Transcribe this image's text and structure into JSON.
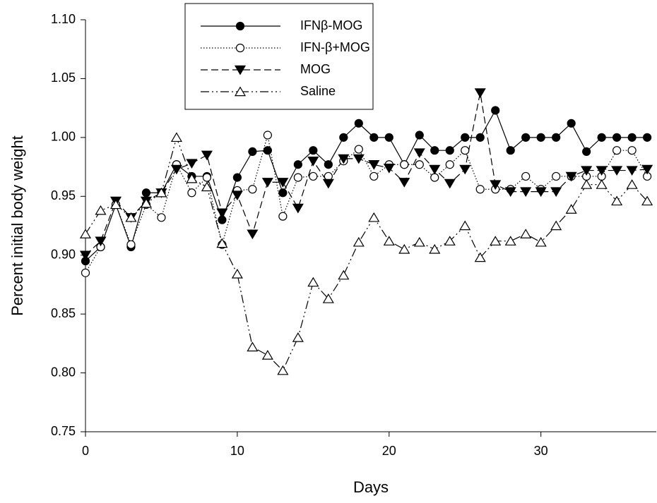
{
  "chart_data": {
    "type": "line",
    "x_label": "Days",
    "y_label": "Percent initial body weight",
    "x": [
      0,
      1,
      2,
      3,
      4,
      5,
      6,
      7,
      8,
      9,
      10,
      11,
      12,
      13,
      14,
      15,
      16,
      17,
      18,
      19,
      20,
      21,
      22,
      23,
      24,
      25,
      26,
      27,
      28,
      29,
      30,
      31,
      32,
      33,
      34,
      35,
      36,
      37
    ],
    "xlim": [
      0,
      37.6
    ],
    "ylim": [
      0.75,
      1.1
    ],
    "xticks": [
      0,
      10,
      20,
      30
    ],
    "yticks": [
      {
        "value": 0.75,
        "label": "0.75"
      },
      {
        "value": 0.8,
        "label": "0.80"
      },
      {
        "value": 0.85,
        "label": "0.85"
      },
      {
        "value": 0.9,
        "label": "0.90"
      },
      {
        "value": 0.95,
        "label": "0.95"
      },
      {
        "value": 1.0,
        "label": "1.00"
      },
      {
        "value": 1.05,
        "label": "1.05"
      },
      {
        "value": 1.1,
        "label": "1.10"
      }
    ],
    "legend": "top-left",
    "series": [
      {
        "name": "IFNβ-MOG",
        "color": "#000000",
        "line_style": "solid",
        "marker": "circle-filled",
        "values": [
          0.895,
          0.907,
          0.943,
          0.907,
          0.953,
          0.953,
          0.977,
          0.967,
          0.967,
          0.93,
          0.966,
          0.988,
          0.989,
          0.953,
          0.977,
          0.989,
          0.977,
          1.0,
          1.012,
          1.0,
          1.0,
          0.977,
          1.002,
          0.989,
          0.989,
          1.0,
          1.0,
          1.023,
          0.989,
          1.0,
          1.0,
          1.0,
          1.012,
          0.988,
          1.0,
          1.0,
          1.0,
          1.0
        ]
      },
      {
        "name": "IFN-β+MOG",
        "color": "#000000",
        "line_style": "dotted",
        "marker": "circle-open",
        "values": [
          0.885,
          0.907,
          0.943,
          0.909,
          0.943,
          0.932,
          0.977,
          0.953,
          0.966,
          0.909,
          0.955,
          0.956,
          1.002,
          0.933,
          0.966,
          0.967,
          0.967,
          0.98,
          0.99,
          0.967,
          0.977,
          0.977,
          0.977,
          0.966,
          0.977,
          0.989,
          0.956,
          0.956,
          0.956,
          0.967,
          0.956,
          0.967,
          0.967,
          0.967,
          0.967,
          0.989,
          0.989,
          0.967
        ]
      },
      {
        "name": "MOG",
        "color": "#000000",
        "line_style": "dashed",
        "marker": "triangle-down-filled",
        "values": [
          0.9,
          0.912,
          0.946,
          0.932,
          0.946,
          0.953,
          0.973,
          0.978,
          0.985,
          0.936,
          0.951,
          0.918,
          0.962,
          0.962,
          0.94,
          0.98,
          0.961,
          0.982,
          0.982,
          0.977,
          0.974,
          0.962,
          0.987,
          0.973,
          0.961,
          0.973,
          1.038,
          0.96,
          0.954,
          0.954,
          0.954,
          0.954,
          0.967,
          0.972,
          0.972,
          0.972,
          0.972,
          0.973
        ]
      },
      {
        "name": "Saline",
        "color": "#000000",
        "line_style": "dashdotdot",
        "marker": "triangle-up-open",
        "values": [
          0.918,
          0.938,
          0.943,
          0.932,
          0.944,
          0.953,
          1.0,
          0.965,
          0.958,
          0.91,
          0.884,
          0.822,
          0.815,
          0.802,
          0.83,
          0.877,
          0.863,
          0.883,
          0.911,
          0.932,
          0.912,
          0.905,
          0.911,
          0.905,
          0.912,
          0.925,
          0.898,
          0.912,
          0.912,
          0.918,
          0.911,
          0.925,
          0.939,
          0.96,
          0.96,
          0.946,
          0.96,
          0.946
        ]
      }
    ]
  }
}
